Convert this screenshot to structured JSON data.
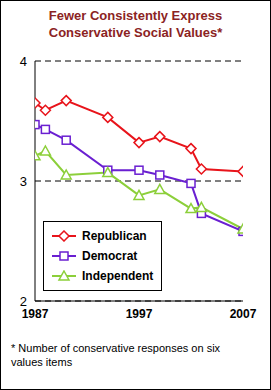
{
  "chart_data": {
    "type": "line",
    "title": "Fewer Consistently Express Conservative Social Values*",
    "footnote": "* Number of conservative responses on six values items",
    "x": [
      1987,
      1988,
      1990,
      1994,
      1997,
      1999,
      2002,
      2003,
      2007
    ],
    "series": [
      {
        "name": "Republican",
        "color": "#e8141b",
        "marker": "diamond",
        "values": [
          3.65,
          3.59,
          3.67,
          3.53,
          3.32,
          3.37,
          3.27,
          3.1,
          3.08
        ]
      },
      {
        "name": "Democrat",
        "color": "#6a1fd1",
        "marker": "square",
        "values": [
          3.47,
          3.43,
          3.34,
          3.09,
          3.09,
          3.05,
          2.98,
          2.73,
          2.58
        ]
      },
      {
        "name": "Independent",
        "color": "#8ccf3a",
        "marker": "triangle",
        "values": [
          3.21,
          3.25,
          3.05,
          3.07,
          2.88,
          2.93,
          2.77,
          2.78,
          2.6
        ]
      }
    ],
    "xlim": [
      1987,
      2007
    ],
    "xticks": [
      1987,
      1997,
      2007
    ],
    "ylim": [
      2,
      4
    ],
    "yticks": [
      2,
      3,
      4
    ],
    "grid": true,
    "legend": "lower left"
  }
}
